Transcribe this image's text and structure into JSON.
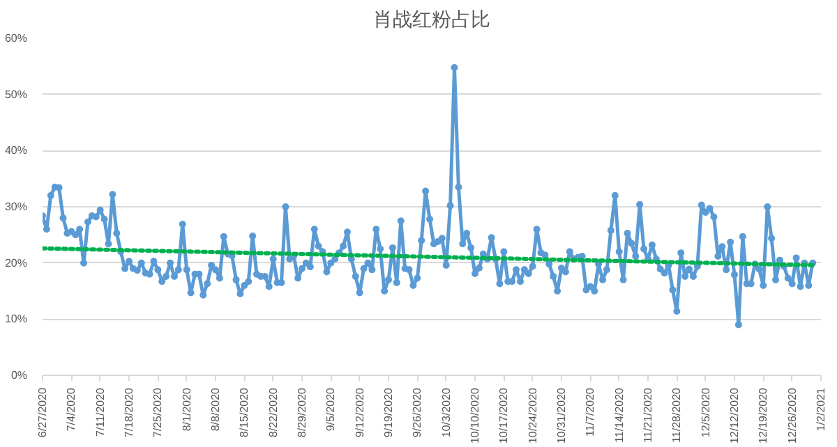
{
  "chart_data": {
    "type": "line",
    "title": "肖战红粉占比",
    "xlim": [
      "2020-06-27",
      "2021-01-02"
    ],
    "xticks": [
      {
        "value": "2020-06-27",
        "label": "6/27/2020"
      },
      {
        "value": "2020-07-04",
        "label": "7/4/2020"
      },
      {
        "value": "2020-07-11",
        "label": "7/11/2020"
      },
      {
        "value": "2020-07-18",
        "label": "7/18/2020"
      },
      {
        "value": "2020-07-25",
        "label": "7/25/2020"
      },
      {
        "value": "2020-08-01",
        "label": "8/1/2020"
      },
      {
        "value": "2020-08-08",
        "label": "8/8/2020"
      },
      {
        "value": "2020-08-15",
        "label": "8/15/2020"
      },
      {
        "value": "2020-08-22",
        "label": "8/22/2020"
      },
      {
        "value": "2020-08-29",
        "label": "8/29/2020"
      },
      {
        "value": "2020-09-05",
        "label": "9/5/2020"
      },
      {
        "value": "2020-09-12",
        "label": "9/12/2020"
      },
      {
        "value": "2020-09-19",
        "label": "9/19/2020"
      },
      {
        "value": "2020-09-26",
        "label": "9/26/2020"
      },
      {
        "value": "2020-10-03",
        "label": "10/3/2020"
      },
      {
        "value": "2020-10-10",
        "label": "10/10/2020"
      },
      {
        "value": "2020-10-17",
        "label": "10/17/2020"
      },
      {
        "value": "2020-10-24",
        "label": "10/24/2020"
      },
      {
        "value": "2020-10-31",
        "label": "10/31/2020"
      },
      {
        "value": "2020-11-07",
        "label": "11/7/2020"
      },
      {
        "value": "2020-11-14",
        "label": "11/14/2020"
      },
      {
        "value": "2020-11-21",
        "label": "11/21/2020"
      },
      {
        "value": "2020-11-28",
        "label": "11/28/2020"
      },
      {
        "value": "2020-12-05",
        "label": "12/5/2020"
      },
      {
        "value": "2020-12-12",
        "label": "12/12/2020"
      },
      {
        "value": "2020-12-19",
        "label": "12/19/2020"
      },
      {
        "value": "2020-12-26",
        "label": "12/26/2020"
      },
      {
        "value": "2021-01-02",
        "label": "1/2/2021"
      }
    ],
    "ylim": [
      0,
      60
    ],
    "yticks": [
      {
        "value": 0,
        "label": "0%"
      },
      {
        "value": 10,
        "label": "10%"
      },
      {
        "value": 20,
        "label": "20%"
      },
      {
        "value": 30,
        "label": "30%"
      },
      {
        "value": 40,
        "label": "40%"
      },
      {
        "value": 50,
        "label": "50%"
      },
      {
        "value": 60,
        "label": "60%"
      }
    ],
    "grid": "y",
    "series": [
      {
        "color": "#5b9bd5",
        "marker": "circle",
        "line_style": "solid",
        "x": [
          "2020-06-27",
          "2020-06-28",
          "2020-06-29",
          "2020-06-30",
          "2020-07-01",
          "2020-07-02",
          "2020-07-03",
          "2020-07-04",
          "2020-07-05",
          "2020-07-06",
          "2020-07-07",
          "2020-07-08",
          "2020-07-09",
          "2020-07-10",
          "2020-07-11",
          "2020-07-12",
          "2020-07-13",
          "2020-07-14",
          "2020-07-15",
          "2020-07-16",
          "2020-07-17",
          "2020-07-18",
          "2020-07-19",
          "2020-07-20",
          "2020-07-21",
          "2020-07-22",
          "2020-07-23",
          "2020-07-24",
          "2020-07-25",
          "2020-07-26",
          "2020-07-27",
          "2020-07-28",
          "2020-07-29",
          "2020-07-30",
          "2020-07-31",
          "2020-08-01",
          "2020-08-02",
          "2020-08-03",
          "2020-08-04",
          "2020-08-05",
          "2020-08-06",
          "2020-08-07",
          "2020-08-08",
          "2020-08-09",
          "2020-08-10",
          "2020-08-11",
          "2020-08-12",
          "2020-08-13",
          "2020-08-14",
          "2020-08-15",
          "2020-08-16",
          "2020-08-17",
          "2020-08-18",
          "2020-08-19",
          "2020-08-20",
          "2020-08-21",
          "2020-08-22",
          "2020-08-23",
          "2020-08-24",
          "2020-08-25",
          "2020-08-26",
          "2020-08-27",
          "2020-08-28",
          "2020-08-29",
          "2020-08-30",
          "2020-08-31",
          "2020-09-01",
          "2020-09-02",
          "2020-09-03",
          "2020-09-04",
          "2020-09-05",
          "2020-09-06",
          "2020-09-07",
          "2020-09-08",
          "2020-09-09",
          "2020-09-10",
          "2020-09-11",
          "2020-09-12",
          "2020-09-13",
          "2020-09-14",
          "2020-09-15",
          "2020-09-16",
          "2020-09-17",
          "2020-09-18",
          "2020-09-19",
          "2020-09-20",
          "2020-09-21",
          "2020-09-22",
          "2020-09-23",
          "2020-09-24",
          "2020-09-25",
          "2020-09-26",
          "2020-09-27",
          "2020-09-28",
          "2020-09-29",
          "2020-09-30",
          "2020-10-01",
          "2020-10-02",
          "2020-10-03",
          "2020-10-04",
          "2020-10-05",
          "2020-10-06",
          "2020-10-07",
          "2020-10-08",
          "2020-10-09",
          "2020-10-10",
          "2020-10-11",
          "2020-10-12",
          "2020-10-13",
          "2020-10-14",
          "2020-10-15",
          "2020-10-16",
          "2020-10-17",
          "2020-10-18",
          "2020-10-19",
          "2020-10-20",
          "2020-10-21",
          "2020-10-22",
          "2020-10-23",
          "2020-10-24",
          "2020-10-25",
          "2020-10-26",
          "2020-10-27",
          "2020-10-28",
          "2020-10-29",
          "2020-10-30",
          "2020-10-31",
          "2020-11-01",
          "2020-11-02",
          "2020-11-03",
          "2020-11-04",
          "2020-11-05",
          "2020-11-06",
          "2020-11-07",
          "2020-11-08",
          "2020-11-09",
          "2020-11-10",
          "2020-11-11",
          "2020-11-12",
          "2020-11-13",
          "2020-11-14",
          "2020-11-15",
          "2020-11-16",
          "2020-11-17",
          "2020-11-18",
          "2020-11-19",
          "2020-11-20",
          "2020-11-21",
          "2020-11-22",
          "2020-11-23",
          "2020-11-24",
          "2020-11-25",
          "2020-11-26",
          "2020-11-27",
          "2020-11-28",
          "2020-11-29",
          "2020-11-30",
          "2020-12-01",
          "2020-12-02",
          "2020-12-03",
          "2020-12-04",
          "2020-12-05",
          "2020-12-06",
          "2020-12-07",
          "2020-12-08",
          "2020-12-09",
          "2020-12-10",
          "2020-12-11",
          "2020-12-12",
          "2020-12-13",
          "2020-12-14",
          "2020-12-15",
          "2020-12-16",
          "2020-12-17",
          "2020-12-18",
          "2020-12-19",
          "2020-12-20",
          "2020-12-21",
          "2020-12-22",
          "2020-12-23",
          "2020-12-24",
          "2020-12-25",
          "2020-12-26",
          "2020-12-27",
          "2020-12-28",
          "2020-12-29",
          "2020-12-30",
          "2020-12-31"
        ],
        "values": [
          28.4,
          26,
          32,
          33.5,
          33.4,
          28,
          25.3,
          25.6,
          25,
          26,
          20,
          27.3,
          28.4,
          28.2,
          29.4,
          27.8,
          23.4,
          32.2,
          25.3,
          22,
          19,
          20.3,
          19,
          18.7,
          20,
          18.2,
          18,
          20.3,
          18.8,
          16.7,
          17.6,
          20,
          17.6,
          18.8,
          26.9,
          18.8,
          14.7,
          18,
          18,
          14.3,
          16.3,
          19.6,
          18.8,
          17.3,
          24.7,
          21.6,
          21.3,
          17,
          14.5,
          16,
          16.7,
          24.8,
          18,
          17.6,
          17.6,
          15.8,
          20.7,
          16.5,
          16.5,
          30,
          20.7,
          21.3,
          17.3,
          19,
          20,
          19.3,
          26,
          23,
          22,
          18.4,
          20,
          20.7,
          21.8,
          23,
          25.5,
          20.7,
          17.6,
          14.7,
          19,
          20,
          18.8,
          26,
          22.5,
          15,
          17,
          22.7,
          16.5,
          27.5,
          19,
          18.8,
          16,
          17.3,
          24,
          32.8,
          27.8,
          23.4,
          23.8,
          24.4,
          19.6,
          30.2,
          54.8,
          33.5,
          23.4,
          25.3,
          22.7,
          18.1,
          19.1,
          21.6,
          20.7,
          24.5,
          20.7,
          16.3,
          22,
          16.7,
          16.7,
          18.8,
          16.7,
          18.8,
          18.1,
          19.4,
          26,
          21.8,
          21.4,
          19.8,
          17.6,
          15,
          19.1,
          18.4,
          22,
          20.7,
          21,
          21.2,
          15.2,
          15.8,
          15,
          19.8,
          17,
          18.8,
          25.8,
          32,
          22,
          17,
          25.3,
          23.5,
          21.2,
          30.4,
          22.5,
          20.7,
          23.2,
          20.7,
          18.9,
          18.2,
          19.6,
          15.2,
          11.4,
          21.8,
          17.6,
          18.9,
          17.6,
          19.4,
          30.3,
          29,
          29.7,
          28.2,
          21.2,
          22.9,
          18.8,
          23.7,
          17.9,
          9,
          24.7,
          16.3,
          16.3,
          19.8,
          18.9,
          16,
          30,
          24.4,
          17,
          20.5,
          19.4,
          17.3,
          16.3,
          20.9,
          15.8,
          20,
          16,
          20
        ]
      },
      {
        "type": "line",
        "color": "#00b050",
        "marker": "none",
        "line_style": "dotted",
        "x": [
          "2020-06-27",
          "2020-12-31"
        ],
        "values": [
          22.6,
          19.6
        ]
      }
    ]
  }
}
